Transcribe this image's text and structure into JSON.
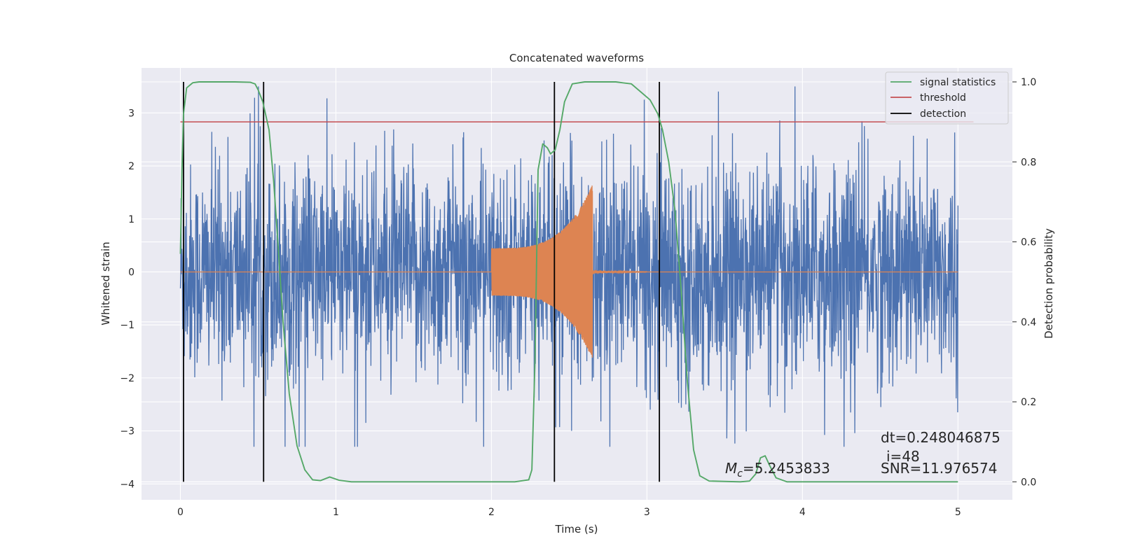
{
  "chart_data": {
    "type": "line",
    "title": "Concatenated waveforms",
    "xlabel": "Time (s)",
    "ylabel": "Whitened strain",
    "y2label": "Detection probability",
    "xlim": [
      -0.25,
      5.35
    ],
    "ylim": [
      -4.3,
      3.85
    ],
    "y2lim": [
      -0.045,
      1.035
    ],
    "xticks": [
      0,
      1,
      2,
      3,
      4,
      5
    ],
    "yticks": [
      -4,
      -3,
      -2,
      -1,
      0,
      1,
      2,
      3
    ],
    "y2ticks": [
      0.0,
      0.2,
      0.4,
      0.6,
      0.8,
      1.0
    ],
    "grid": true,
    "legend_position": "top-right",
    "legend": [
      {
        "label": "signal statistics",
        "color": "#55a868"
      },
      {
        "label": "threshold",
        "color": "#c44e52"
      },
      {
        "label": "detection",
        "color": "#000000"
      }
    ],
    "noise_series": {
      "color": "#4c72b0",
      "x_range": [
        0,
        5
      ],
      "approx_envelope": [
        -3.3,
        3.5
      ]
    },
    "waveform_series": {
      "color": "#dd8452",
      "x_range": [
        2.0,
        2.65
      ],
      "start_amplitude": 0.45,
      "peak_amplitude": 1.65
    },
    "threshold": {
      "value": 0.9,
      "x_range": [
        0,
        5.1
      ]
    },
    "detections": [
      0.02,
      0.535,
      2.405,
      3.08
    ],
    "signal_statistics": [
      [
        0.0,
        0.57
      ],
      [
        0.01,
        0.78
      ],
      [
        0.02,
        0.92
      ],
      [
        0.04,
        0.985
      ],
      [
        0.08,
        0.998
      ],
      [
        0.12,
        1.0
      ],
      [
        0.35,
        1.0
      ],
      [
        0.45,
        0.999
      ],
      [
        0.48,
        0.995
      ],
      [
        0.5,
        0.98
      ],
      [
        0.53,
        0.95
      ],
      [
        0.57,
        0.88
      ],
      [
        0.6,
        0.75
      ],
      [
        0.63,
        0.58
      ],
      [
        0.66,
        0.4
      ],
      [
        0.7,
        0.22
      ],
      [
        0.75,
        0.09
      ],
      [
        0.8,
        0.03
      ],
      [
        0.85,
        0.005
      ],
      [
        0.9,
        0.003
      ],
      [
        0.96,
        0.012
      ],
      [
        1.02,
        0.004
      ],
      [
        1.1,
        0.0
      ],
      [
        2.15,
        0.0
      ],
      [
        2.24,
        0.005
      ],
      [
        2.26,
        0.03
      ],
      [
        2.28,
        0.3
      ],
      [
        2.3,
        0.78
      ],
      [
        2.33,
        0.845
      ],
      [
        2.36,
        0.835
      ],
      [
        2.38,
        0.82
      ],
      [
        2.41,
        0.83
      ],
      [
        2.44,
        0.88
      ],
      [
        2.47,
        0.95
      ],
      [
        2.52,
        0.995
      ],
      [
        2.6,
        1.0
      ],
      [
        2.8,
        1.0
      ],
      [
        2.9,
        0.995
      ],
      [
        2.96,
        0.975
      ],
      [
        3.02,
        0.955
      ],
      [
        3.07,
        0.92
      ],
      [
        3.1,
        0.88
      ],
      [
        3.14,
        0.8
      ],
      [
        3.18,
        0.68
      ],
      [
        3.22,
        0.48
      ],
      [
        3.26,
        0.25
      ],
      [
        3.3,
        0.08
      ],
      [
        3.34,
        0.015
      ],
      [
        3.4,
        0.002
      ],
      [
        3.6,
        0.0
      ],
      [
        3.66,
        0.002
      ],
      [
        3.7,
        0.02
      ],
      [
        3.73,
        0.06
      ],
      [
        3.76,
        0.065
      ],
      [
        3.79,
        0.04
      ],
      [
        3.83,
        0.01
      ],
      [
        3.9,
        0.0
      ],
      [
        5.0,
        0.0
      ]
    ],
    "annotations": {
      "dt": "dt=0.248046875",
      "i": "i=48",
      "mc_symbol": "M",
      "mc_sub": "c",
      "mc_value": "=5.2453833",
      "snr": "SNR=11.976574"
    }
  }
}
